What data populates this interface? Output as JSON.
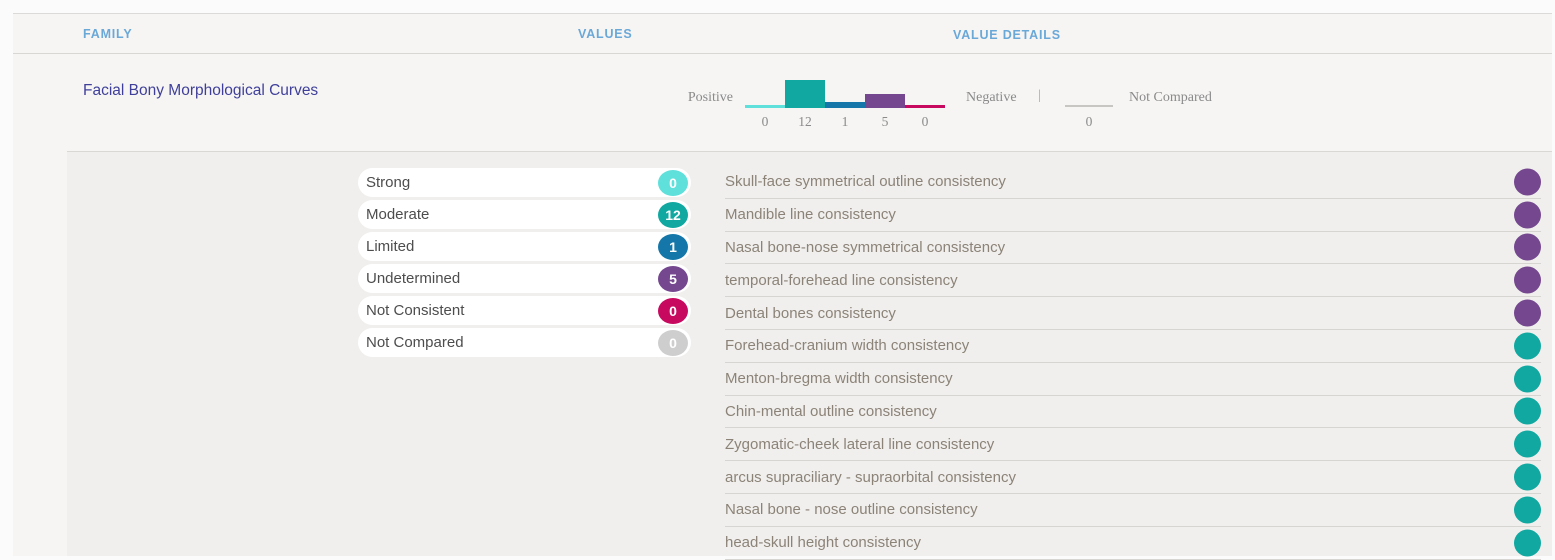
{
  "colors": {
    "strong": "#5fe0db",
    "moderate": "#10a8a0",
    "limited": "#1577a9",
    "undetermined": "#74478f",
    "not_consistent": "#c7095f",
    "not_compared": "#cecece",
    "header_blue": "#6aa8d8",
    "family_indigo": "#3f3f99"
  },
  "table": {
    "headers": {
      "family": "FAMILY",
      "values": "VALUES",
      "value_details": "VALUE DETAILS"
    },
    "family": {
      "name": "Facial Bony Morphological Curves",
      "chart": {
        "positive_label": "Positive",
        "negative_label": "Negative",
        "separator": "|",
        "not_compared_label": "Not Compared",
        "not_compared_value": "0",
        "bars": [
          {
            "key": "strong",
            "value": 0,
            "color": "#5fe0db"
          },
          {
            "key": "moderate",
            "value": 12,
            "color": "#10a8a0"
          },
          {
            "key": "limited",
            "value": 1,
            "color": "#1577a9"
          },
          {
            "key": "undetermined",
            "value": 5,
            "color": "#74478f"
          },
          {
            "key": "not-consistent",
            "value": 0,
            "color": "#c7095f"
          }
        ]
      }
    },
    "values_legend": [
      {
        "label": "Strong",
        "count": "0",
        "color": "#5fe0db"
      },
      {
        "label": "Moderate",
        "count": "12",
        "color": "#10a8a0"
      },
      {
        "label": "Limited",
        "count": "1",
        "color": "#1577a9"
      },
      {
        "label": "Undetermined",
        "count": "5",
        "color": "#74478f"
      },
      {
        "label": "Not Consistent",
        "count": "0",
        "color": "#c7095f"
      },
      {
        "label": "Not Compared",
        "count": "0",
        "color": "#cecece"
      }
    ],
    "value_details": [
      {
        "label": "Skull-face symmetrical outline consistency",
        "status": "undetermined",
        "dot_color": "#74478f"
      },
      {
        "label": "Mandible line consistency",
        "status": "undetermined",
        "dot_color": "#74478f"
      },
      {
        "label": "Nasal bone-nose symmetrical consistency",
        "status": "undetermined",
        "dot_color": "#74478f"
      },
      {
        "label": "temporal-forehead line consistency",
        "status": "undetermined",
        "dot_color": "#74478f"
      },
      {
        "label": "Dental bones consistency",
        "status": "undetermined",
        "dot_color": "#74478f"
      },
      {
        "label": "Forehead-cranium width consistency",
        "status": "moderate",
        "dot_color": "#10a8a0"
      },
      {
        "label": "Menton-bregma width consistency",
        "status": "moderate",
        "dot_color": "#10a8a0"
      },
      {
        "label": "Chin-mental outline consistency",
        "status": "moderate",
        "dot_color": "#10a8a0"
      },
      {
        "label": "Zygomatic-cheek lateral line consistency",
        "status": "moderate",
        "dot_color": "#10a8a0"
      },
      {
        "label": "arcus supraciliary - supraorbital consistency",
        "status": "moderate",
        "dot_color": "#10a8a0"
      },
      {
        "label": "Nasal bone - nose outline consistency",
        "status": "moderate",
        "dot_color": "#10a8a0"
      },
      {
        "label": "head-skull height consistency",
        "status": "moderate",
        "dot_color": "#10a8a0"
      }
    ]
  },
  "chart_data": {
    "type": "bar",
    "categories": [
      "Strong",
      "Moderate",
      "Limited",
      "Undetermined",
      "Not Consistent"
    ],
    "values": [
      0,
      12,
      1,
      5,
      0
    ],
    "title": "",
    "xlabel": "",
    "ylabel": "",
    "annotations": [
      "Positive",
      "Negative",
      "Not Compared: 0"
    ],
    "legend_position": "none",
    "grid": false
  }
}
